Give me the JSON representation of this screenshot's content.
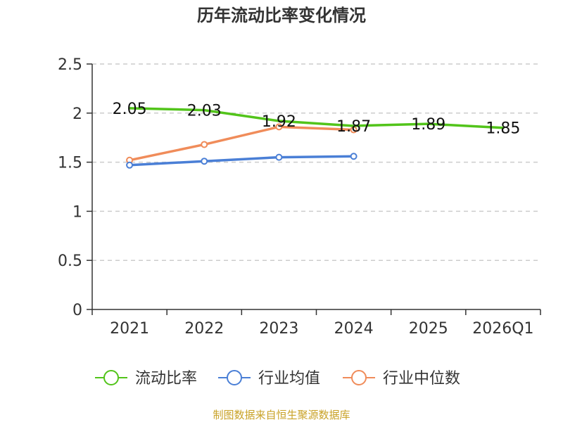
{
  "chart_data": {
    "type": "line",
    "title": "历年流动比率变化情况",
    "categories": [
      "2021",
      "2022",
      "2023",
      "2024",
      "2025",
      "2026Q1"
    ],
    "ylim": [
      0,
      2.5
    ],
    "yticks": [
      "0",
      "0.5",
      "1",
      "1.5",
      "2",
      "2.5"
    ],
    "grid": true,
    "legend_position": "bottom",
    "series": [
      {
        "name": "流动比率",
        "color": "#52c41a",
        "markers": false,
        "show_labels": true,
        "values": [
          2.05,
          2.03,
          1.92,
          1.87,
          1.89,
          1.85
        ],
        "labels": [
          "2.05",
          "2.03",
          "1.92",
          "1.87",
          "1.89",
          "1.85"
        ]
      },
      {
        "name": "行业均值",
        "color": "#4a7fd6",
        "markers": true,
        "show_labels": false,
        "values": [
          1.47,
          1.51,
          1.55,
          1.56,
          null,
          null
        ]
      },
      {
        "name": "行业中位数",
        "color": "#f08c5a",
        "markers": true,
        "show_labels": false,
        "values": [
          1.52,
          1.68,
          1.86,
          1.83,
          null,
          null
        ]
      }
    ],
    "source_note": "制图数据来自恒生聚源数据库"
  }
}
